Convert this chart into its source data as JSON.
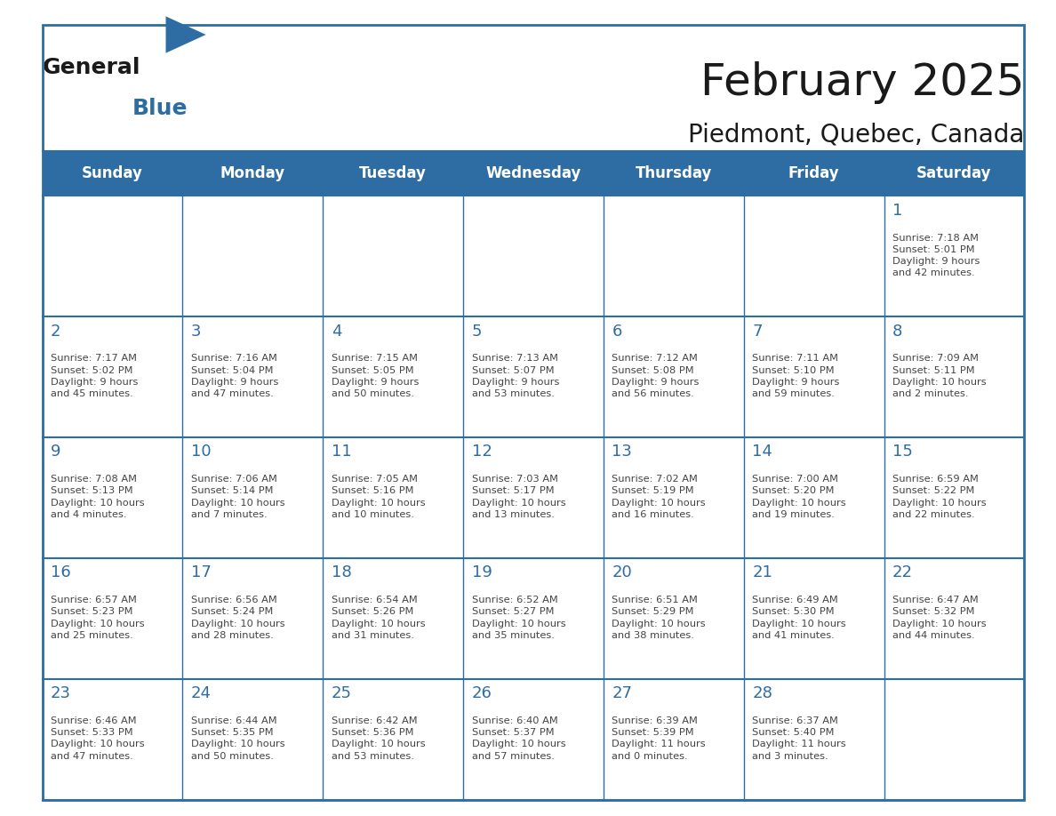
{
  "title": "February 2025",
  "subtitle": "Piedmont, Quebec, Canada",
  "header_bg": "#2E6DA4",
  "header_text_color": "#FFFFFF",
  "cell_bg": "#FFFFFF",
  "grid_line_color": "#2E6DA4",
  "day_number_color": "#2E6DA4",
  "cell_text_color": "#444444",
  "days_of_week": [
    "Sunday",
    "Monday",
    "Tuesday",
    "Wednesday",
    "Thursday",
    "Friday",
    "Saturday"
  ],
  "calendar_data": [
    [
      null,
      null,
      null,
      null,
      null,
      null,
      {
        "day": 1,
        "sunrise": "7:18 AM",
        "sunset": "5:01 PM",
        "daylight": "9 hours\nand 42 minutes."
      }
    ],
    [
      {
        "day": 2,
        "sunrise": "7:17 AM",
        "sunset": "5:02 PM",
        "daylight": "9 hours\nand 45 minutes."
      },
      {
        "day": 3,
        "sunrise": "7:16 AM",
        "sunset": "5:04 PM",
        "daylight": "9 hours\nand 47 minutes."
      },
      {
        "day": 4,
        "sunrise": "7:15 AM",
        "sunset": "5:05 PM",
        "daylight": "9 hours\nand 50 minutes."
      },
      {
        "day": 5,
        "sunrise": "7:13 AM",
        "sunset": "5:07 PM",
        "daylight": "9 hours\nand 53 minutes."
      },
      {
        "day": 6,
        "sunrise": "7:12 AM",
        "sunset": "5:08 PM",
        "daylight": "9 hours\nand 56 minutes."
      },
      {
        "day": 7,
        "sunrise": "7:11 AM",
        "sunset": "5:10 PM",
        "daylight": "9 hours\nand 59 minutes."
      },
      {
        "day": 8,
        "sunrise": "7:09 AM",
        "sunset": "5:11 PM",
        "daylight": "10 hours\nand 2 minutes."
      }
    ],
    [
      {
        "day": 9,
        "sunrise": "7:08 AM",
        "sunset": "5:13 PM",
        "daylight": "10 hours\nand 4 minutes."
      },
      {
        "day": 10,
        "sunrise": "7:06 AM",
        "sunset": "5:14 PM",
        "daylight": "10 hours\nand 7 minutes."
      },
      {
        "day": 11,
        "sunrise": "7:05 AM",
        "sunset": "5:16 PM",
        "daylight": "10 hours\nand 10 minutes."
      },
      {
        "day": 12,
        "sunrise": "7:03 AM",
        "sunset": "5:17 PM",
        "daylight": "10 hours\nand 13 minutes."
      },
      {
        "day": 13,
        "sunrise": "7:02 AM",
        "sunset": "5:19 PM",
        "daylight": "10 hours\nand 16 minutes."
      },
      {
        "day": 14,
        "sunrise": "7:00 AM",
        "sunset": "5:20 PM",
        "daylight": "10 hours\nand 19 minutes."
      },
      {
        "day": 15,
        "sunrise": "6:59 AM",
        "sunset": "5:22 PM",
        "daylight": "10 hours\nand 22 minutes."
      }
    ],
    [
      {
        "day": 16,
        "sunrise": "6:57 AM",
        "sunset": "5:23 PM",
        "daylight": "10 hours\nand 25 minutes."
      },
      {
        "day": 17,
        "sunrise": "6:56 AM",
        "sunset": "5:24 PM",
        "daylight": "10 hours\nand 28 minutes."
      },
      {
        "day": 18,
        "sunrise": "6:54 AM",
        "sunset": "5:26 PM",
        "daylight": "10 hours\nand 31 minutes."
      },
      {
        "day": 19,
        "sunrise": "6:52 AM",
        "sunset": "5:27 PM",
        "daylight": "10 hours\nand 35 minutes."
      },
      {
        "day": 20,
        "sunrise": "6:51 AM",
        "sunset": "5:29 PM",
        "daylight": "10 hours\nand 38 minutes."
      },
      {
        "day": 21,
        "sunrise": "6:49 AM",
        "sunset": "5:30 PM",
        "daylight": "10 hours\nand 41 minutes."
      },
      {
        "day": 22,
        "sunrise": "6:47 AM",
        "sunset": "5:32 PM",
        "daylight": "10 hours\nand 44 minutes."
      }
    ],
    [
      {
        "day": 23,
        "sunrise": "6:46 AM",
        "sunset": "5:33 PM",
        "daylight": "10 hours\nand 47 minutes."
      },
      {
        "day": 24,
        "sunrise": "6:44 AM",
        "sunset": "5:35 PM",
        "daylight": "10 hours\nand 50 minutes."
      },
      {
        "day": 25,
        "sunrise": "6:42 AM",
        "sunset": "5:36 PM",
        "daylight": "10 hours\nand 53 minutes."
      },
      {
        "day": 26,
        "sunrise": "6:40 AM",
        "sunset": "5:37 PM",
        "daylight": "10 hours\nand 57 minutes."
      },
      {
        "day": 27,
        "sunrise": "6:39 AM",
        "sunset": "5:39 PM",
        "daylight": "11 hours\nand 0 minutes."
      },
      {
        "day": 28,
        "sunrise": "6:37 AM",
        "sunset": "5:40 PM",
        "daylight": "11 hours\nand 3 minutes."
      },
      null
    ]
  ],
  "logo_text_general": "General",
  "logo_text_blue": "Blue",
  "logo_color_general": "#1a1a1a",
  "logo_color_blue": "#2E6DA4",
  "logo_triangle_color": "#2E6DA4"
}
